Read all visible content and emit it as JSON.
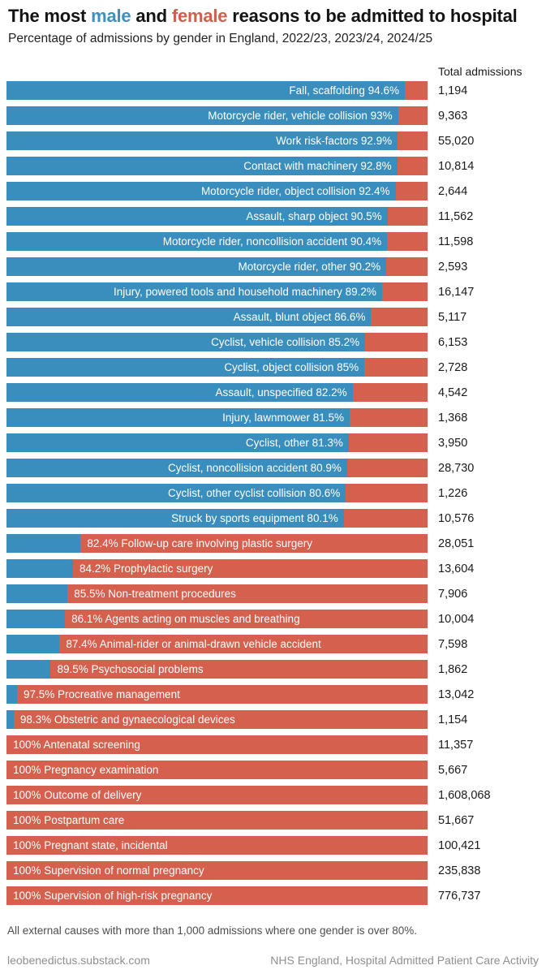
{
  "header": {
    "title_pre": "The most ",
    "title_male": "male",
    "title_mid": " and ",
    "title_female": "female",
    "title_post": " reasons to be admitted to hospital",
    "subtitle": "Percentage of admissions by gender in England, 2022/23, 2023/24, 2024/25",
    "column_header": "Total admissions"
  },
  "colors": {
    "male": "#3a8ebd",
    "female": "#d5604d"
  },
  "chart_data": {
    "type": "bar",
    "orientation": "horizontal",
    "stacked": true,
    "series_names": [
      "male",
      "female"
    ],
    "x_range_pct": [
      0,
      100
    ],
    "legend": "inline-title-colors",
    "rows": [
      {
        "cause": "Fall, scaffolding",
        "dominant_gender": "male",
        "pct_label": "94.6%",
        "display_label": "Fall, scaffolding 94.6%",
        "male_pct": 94.6,
        "female_pct": 5.4,
        "total": "1,194"
      },
      {
        "cause": "Motorcycle rider, vehicle collision",
        "dominant_gender": "male",
        "pct_label": "93%",
        "display_label": "Motorcycle rider, vehicle collision 93%",
        "male_pct": 93,
        "female_pct": 7,
        "total": "9,363"
      },
      {
        "cause": "Work risk-factors",
        "dominant_gender": "male",
        "pct_label": "92.9%",
        "display_label": "Work risk-factors 92.9%",
        "male_pct": 92.9,
        "female_pct": 7.1,
        "total": "55,020"
      },
      {
        "cause": "Contact with machinery",
        "dominant_gender": "male",
        "pct_label": "92.8%",
        "display_label": "Contact with machinery 92.8%",
        "male_pct": 92.8,
        "female_pct": 7.2,
        "total": "10,814"
      },
      {
        "cause": "Motorcycle rider, object collision",
        "dominant_gender": "male",
        "pct_label": "92.4%",
        "display_label": "Motorcycle rider, object collision 92.4%",
        "male_pct": 92.4,
        "female_pct": 7.6,
        "total": "2,644"
      },
      {
        "cause": "Assault, sharp object",
        "dominant_gender": "male",
        "pct_label": "90.5%",
        "display_label": "Assault, sharp object 90.5%",
        "male_pct": 90.5,
        "female_pct": 9.5,
        "total": "11,562"
      },
      {
        "cause": "Motorcycle rider, noncollision accident",
        "dominant_gender": "male",
        "pct_label": "90.4%",
        "display_label": "Motorcycle rider, noncollision accident 90.4%",
        "male_pct": 90.4,
        "female_pct": 9.6,
        "total": "11,598"
      },
      {
        "cause": "Motorcycle rider, other",
        "dominant_gender": "male",
        "pct_label": "90.2%",
        "display_label": "Motorcycle rider, other 90.2%",
        "male_pct": 90.2,
        "female_pct": 9.8,
        "total": "2,593"
      },
      {
        "cause": "Injury, powered tools and household machinery",
        "dominant_gender": "male",
        "pct_label": "89.2%",
        "display_label": "Injury, powered tools and household machinery 89.2%",
        "male_pct": 89.2,
        "female_pct": 10.8,
        "total": "16,147"
      },
      {
        "cause": "Assault, blunt object",
        "dominant_gender": "male",
        "pct_label": "86.6%",
        "display_label": "Assault, blunt object 86.6%",
        "male_pct": 86.6,
        "female_pct": 13.4,
        "total": "5,117"
      },
      {
        "cause": "Cyclist, vehicle collision",
        "dominant_gender": "male",
        "pct_label": "85.2%",
        "display_label": "Cyclist, vehicle collision 85.2%",
        "male_pct": 85.2,
        "female_pct": 14.8,
        "total": "6,153"
      },
      {
        "cause": "Cyclist, object collision",
        "dominant_gender": "male",
        "pct_label": "85%",
        "display_label": "Cyclist, object collision 85%",
        "male_pct": 85,
        "female_pct": 15,
        "total": "2,728"
      },
      {
        "cause": "Assault, unspecified",
        "dominant_gender": "male",
        "pct_label": "82.2%",
        "display_label": "Assault, unspecified 82.2%",
        "male_pct": 82.2,
        "female_pct": 17.8,
        "total": "4,542"
      },
      {
        "cause": "Injury, lawnmower",
        "dominant_gender": "male",
        "pct_label": "81.5%",
        "display_label": "Injury, lawnmower 81.5%",
        "male_pct": 81.5,
        "female_pct": 18.5,
        "total": "1,368"
      },
      {
        "cause": "Cyclist, other",
        "dominant_gender": "male",
        "pct_label": "81.3%",
        "display_label": "Cyclist, other 81.3%",
        "male_pct": 81.3,
        "female_pct": 18.7,
        "total": "3,950"
      },
      {
        "cause": "Cyclist, noncollision accident",
        "dominant_gender": "male",
        "pct_label": "80.9%",
        "display_label": "Cyclist, noncollision accident 80.9%",
        "male_pct": 80.9,
        "female_pct": 19.1,
        "total": "28,730"
      },
      {
        "cause": "Cyclist, other cyclist collision",
        "dominant_gender": "male",
        "pct_label": "80.6%",
        "display_label": "Cyclist, other cyclist collision 80.6%",
        "male_pct": 80.6,
        "female_pct": 19.4,
        "total": "1,226"
      },
      {
        "cause": "Struck by sports equipment",
        "dominant_gender": "male",
        "pct_label": "80.1%",
        "display_label": "Struck by sports equipment 80.1%",
        "male_pct": 80.1,
        "female_pct": 19.9,
        "total": "10,576"
      },
      {
        "cause": "Follow-up care involving plastic surgery",
        "dominant_gender": "female",
        "pct_label": "82.4%",
        "display_label": "82.4% Follow-up care involving plastic surgery",
        "male_pct": 17.6,
        "female_pct": 82.4,
        "total": "28,051"
      },
      {
        "cause": "Prophylactic surgery",
        "dominant_gender": "female",
        "pct_label": "84.2%",
        "display_label": "84.2% Prophylactic surgery",
        "male_pct": 15.8,
        "female_pct": 84.2,
        "total": "13,604"
      },
      {
        "cause": "Non-treatment procedures",
        "dominant_gender": "female",
        "pct_label": "85.5%",
        "display_label": "85.5% Non-treatment procedures",
        "male_pct": 14.5,
        "female_pct": 85.5,
        "total": "7,906"
      },
      {
        "cause": "Agents acting on muscles and breathing",
        "dominant_gender": "female",
        "pct_label": "86.1%",
        "display_label": "86.1% Agents acting on muscles and breathing",
        "male_pct": 13.9,
        "female_pct": 86.1,
        "total": "10,004"
      },
      {
        "cause": "Animal-rider or animal-drawn vehicle accident",
        "dominant_gender": "female",
        "pct_label": "87.4%",
        "display_label": "87.4% Animal-rider or animal-drawn vehicle accident",
        "male_pct": 12.6,
        "female_pct": 87.4,
        "total": "7,598"
      },
      {
        "cause": "Psychosocial problems",
        "dominant_gender": "female",
        "pct_label": "89.5%",
        "display_label": "89.5% Psychosocial problems",
        "male_pct": 10.5,
        "female_pct": 89.5,
        "total": "1,862"
      },
      {
        "cause": "Procreative management",
        "dominant_gender": "female",
        "pct_label": "97.5%",
        "display_label": "97.5% Procreative management",
        "male_pct": 2.5,
        "female_pct": 97.5,
        "total": "13,042"
      },
      {
        "cause": "Obstetric and gynaecological devices",
        "dominant_gender": "female",
        "pct_label": "98.3%",
        "display_label": "98.3% Obstetric and gynaecological devices",
        "male_pct": 1.7,
        "female_pct": 98.3,
        "total": "1,154"
      },
      {
        "cause": "Antenatal screening",
        "dominant_gender": "female",
        "pct_label": "100%",
        "display_label": "100% Antenatal screening",
        "male_pct": 0,
        "female_pct": 100,
        "total": "11,357"
      },
      {
        "cause": "Pregnancy examination",
        "dominant_gender": "female",
        "pct_label": "100%",
        "display_label": "100% Pregnancy examination",
        "male_pct": 0,
        "female_pct": 100,
        "total": "5,667"
      },
      {
        "cause": "Outcome of delivery",
        "dominant_gender": "female",
        "pct_label": "100%",
        "display_label": "100% Outcome of delivery",
        "male_pct": 0,
        "female_pct": 100,
        "total": "1,608,068"
      },
      {
        "cause": "Postpartum care",
        "dominant_gender": "female",
        "pct_label": "100%",
        "display_label": "100% Postpartum care",
        "male_pct": 0,
        "female_pct": 100,
        "total": "51,667"
      },
      {
        "cause": "Pregnant state, incidental",
        "dominant_gender": "female",
        "pct_label": "100%",
        "display_label": "100% Pregnant state, incidental",
        "male_pct": 0,
        "female_pct": 100,
        "total": "100,421"
      },
      {
        "cause": "Supervision of normal pregnancy",
        "dominant_gender": "female",
        "pct_label": "100%",
        "display_label": "100% Supervision of normal pregnancy",
        "male_pct": 0,
        "female_pct": 100,
        "total": "235,838"
      },
      {
        "cause": "Supervision of high-risk pregnancy",
        "dominant_gender": "female",
        "pct_label": "100%",
        "display_label": "100% Supervision of high-risk pregnancy",
        "male_pct": 0,
        "female_pct": 100,
        "total": "776,737"
      }
    ]
  },
  "footer": {
    "note": "All external causes with more than 1,000 admissions where one gender is over 80%.",
    "credit_left": "leobenedictus.substack.com",
    "credit_right": "NHS England, Hospital Admitted Patient Care Activity"
  }
}
